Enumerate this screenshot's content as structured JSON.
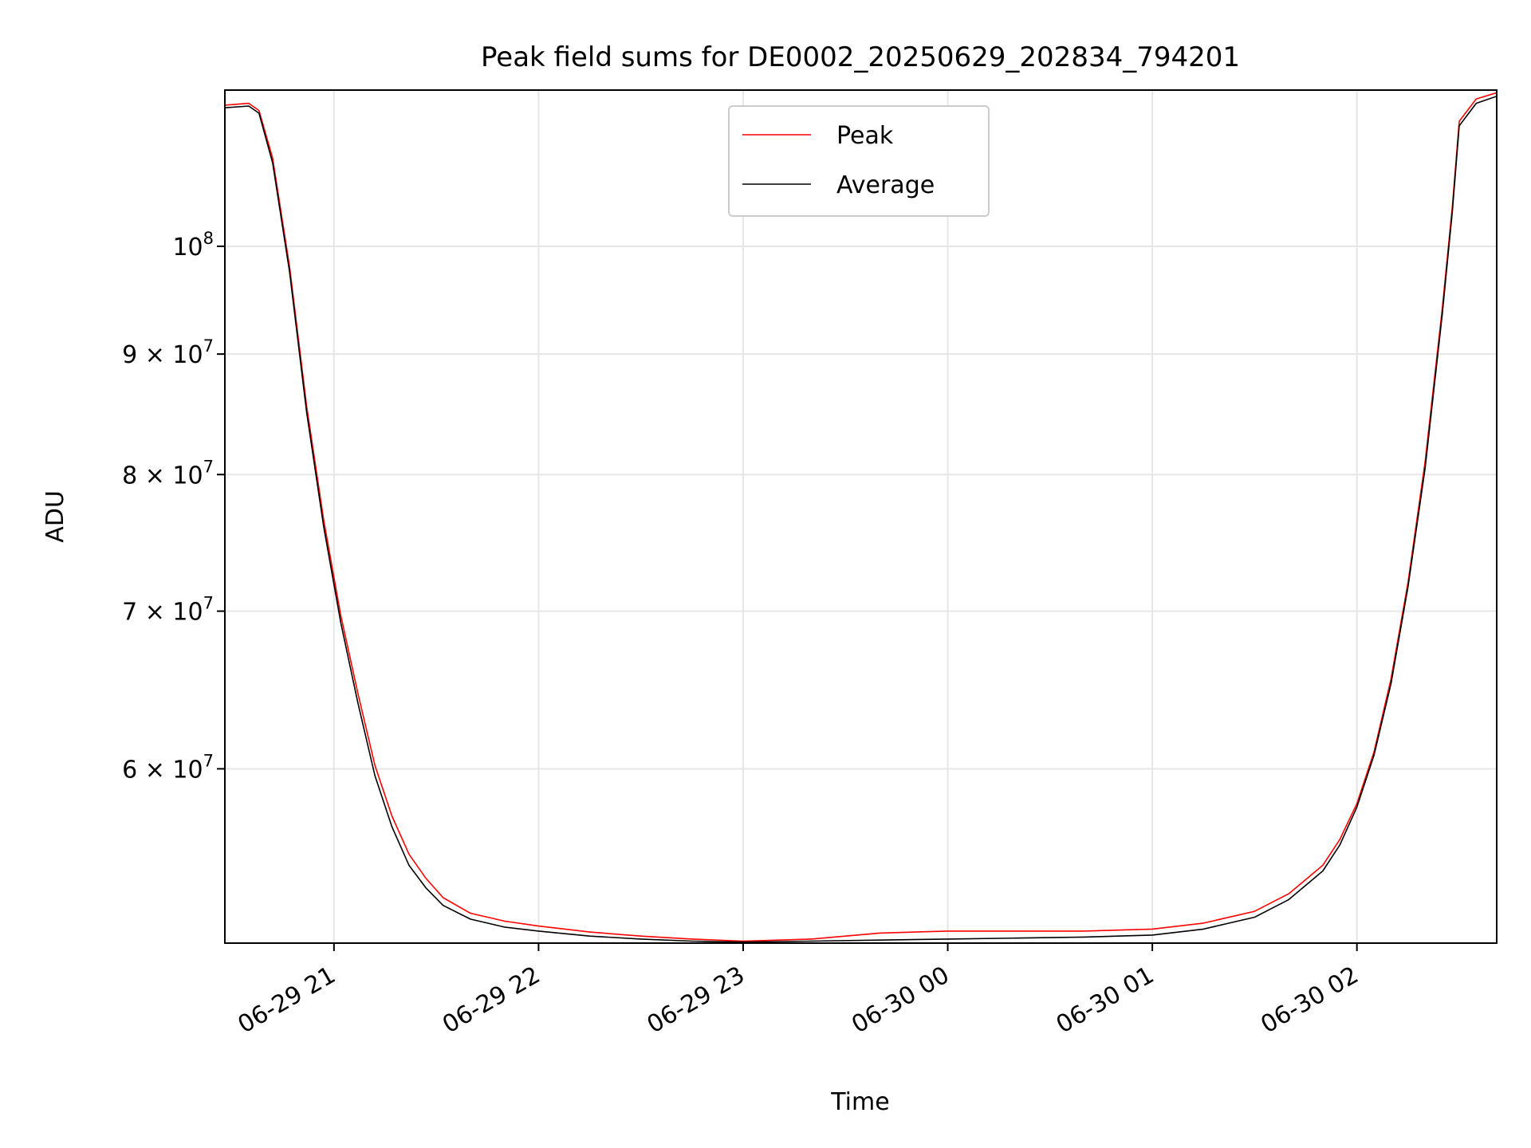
{
  "chart_data": {
    "type": "line",
    "title": "Peak field sums for DE0002_20250629_202834_794201",
    "xlabel": "Time",
    "ylabel": "ADU",
    "yscale": "log",
    "xlim": [
      "2025-06-29 20:28",
      "2025-06-30 02:41"
    ],
    "ylim": [
      50600000,
      116500000
    ],
    "grid": true,
    "legend_position": "top-center",
    "x_ticks": [
      {
        "t": "2025-06-29 21:00",
        "label": "06-29 21"
      },
      {
        "t": "2025-06-29 22:00",
        "label": "06-29 22"
      },
      {
        "t": "2025-06-29 23:00",
        "label": "06-29 23"
      },
      {
        "t": "2025-06-30 00:00",
        "label": "06-30 00"
      },
      {
        "t": "2025-06-30 01:00",
        "label": "06-30 01"
      },
      {
        "t": "2025-06-30 02:00",
        "label": "06-30 02"
      }
    ],
    "y_ticks": [
      {
        "v": 100000000,
        "base": "10",
        "exp": "8"
      },
      {
        "v": 90000000,
        "base": "9 × 10",
        "exp": "7"
      },
      {
        "v": 80000000,
        "base": "8 × 10",
        "exp": "7"
      },
      {
        "v": 70000000,
        "base": "7 × 10",
        "exp": "7"
      },
      {
        "v": 60000000,
        "base": "6 × 10",
        "exp": "7"
      }
    ],
    "series": [
      {
        "name": "Peak",
        "color": "#ff0000",
        "x": [
          "2025-06-29 20:28",
          "2025-06-29 20:35",
          "2025-06-29 20:38",
          "2025-06-29 20:42",
          "2025-06-29 20:47",
          "2025-06-29 20:52",
          "2025-06-29 20:57",
          "2025-06-29 21:02",
          "2025-06-29 21:07",
          "2025-06-29 21:12",
          "2025-06-29 21:17",
          "2025-06-29 21:22",
          "2025-06-29 21:27",
          "2025-06-29 21:32",
          "2025-06-29 21:40",
          "2025-06-29 21:50",
          "2025-06-29 22:00",
          "2025-06-29 22:15",
          "2025-06-29 22:30",
          "2025-06-29 22:45",
          "2025-06-29 23:00",
          "2025-06-29 23:20",
          "2025-06-29 23:40",
          "2025-06-30 00:00",
          "2025-06-30 00:20",
          "2025-06-30 00:40",
          "2025-06-30 01:00",
          "2025-06-30 01:15",
          "2025-06-30 01:30",
          "2025-06-30 01:40",
          "2025-06-30 01:50",
          "2025-06-30 01:55",
          "2025-06-30 02:00",
          "2025-06-30 02:05",
          "2025-06-30 02:10",
          "2025-06-30 02:15",
          "2025-06-30 02:20",
          "2025-06-30 02:25",
          "2025-06-30 02:28",
          "2025-06-30 02:30",
          "2025-06-30 02:35",
          "2025-06-30 02:41"
        ],
        "values": [
          114800000,
          115000000,
          114200000,
          109000000,
          98000000,
          85500000,
          76500000,
          69700000,
          64600000,
          60200000,
          57300000,
          55200000,
          53900000,
          52900000,
          52100000,
          51700000,
          51450000,
          51150000,
          50950000,
          50800000,
          50700000,
          50800000,
          51100000,
          51200000,
          51200000,
          51200000,
          51300000,
          51600000,
          52200000,
          53100000,
          54600000,
          56000000,
          58000000,
          61000000,
          65500000,
          72000000,
          81000000,
          94000000,
          104000000,
          113000000,
          115500000,
          116200000
        ]
      },
      {
        "name": "Average",
        "color": "#000000",
        "x": [
          "2025-06-29 20:28",
          "2025-06-29 20:35",
          "2025-06-29 20:38",
          "2025-06-29 20:42",
          "2025-06-29 20:47",
          "2025-06-29 20:52",
          "2025-06-29 20:57",
          "2025-06-29 21:02",
          "2025-06-29 21:07",
          "2025-06-29 21:12",
          "2025-06-29 21:17",
          "2025-06-29 21:22",
          "2025-06-29 21:27",
          "2025-06-29 21:32",
          "2025-06-29 21:40",
          "2025-06-29 21:50",
          "2025-06-29 22:00",
          "2025-06-29 22:15",
          "2025-06-29 22:30",
          "2025-06-29 22:45",
          "2025-06-29 23:00",
          "2025-06-29 23:20",
          "2025-06-29 23:40",
          "2025-06-30 00:00",
          "2025-06-30 00:20",
          "2025-06-30 00:40",
          "2025-06-30 01:00",
          "2025-06-30 01:15",
          "2025-06-30 01:30",
          "2025-06-30 01:40",
          "2025-06-30 01:50",
          "2025-06-30 01:55",
          "2025-06-30 02:00",
          "2025-06-30 02:05",
          "2025-06-30 02:10",
          "2025-06-30 02:15",
          "2025-06-30 02:20",
          "2025-06-30 02:25",
          "2025-06-30 02:28",
          "2025-06-30 02:30",
          "2025-06-30 02:35",
          "2025-06-30 02:41"
        ],
        "values": [
          114500000,
          114700000,
          113900000,
          108500000,
          97500000,
          85000000,
          76000000,
          69200000,
          64000000,
          59600000,
          56700000,
          54600000,
          53400000,
          52500000,
          51800000,
          51400000,
          51200000,
          50950000,
          50800000,
          50700000,
          50650000,
          50700000,
          50750000,
          50800000,
          50850000,
          50900000,
          51000000,
          51300000,
          51900000,
          52800000,
          54300000,
          55700000,
          57800000,
          60800000,
          65200000,
          71700000,
          80500000,
          93500000,
          103500000,
          112500000,
          115000000,
          115800000
        ]
      }
    ]
  }
}
